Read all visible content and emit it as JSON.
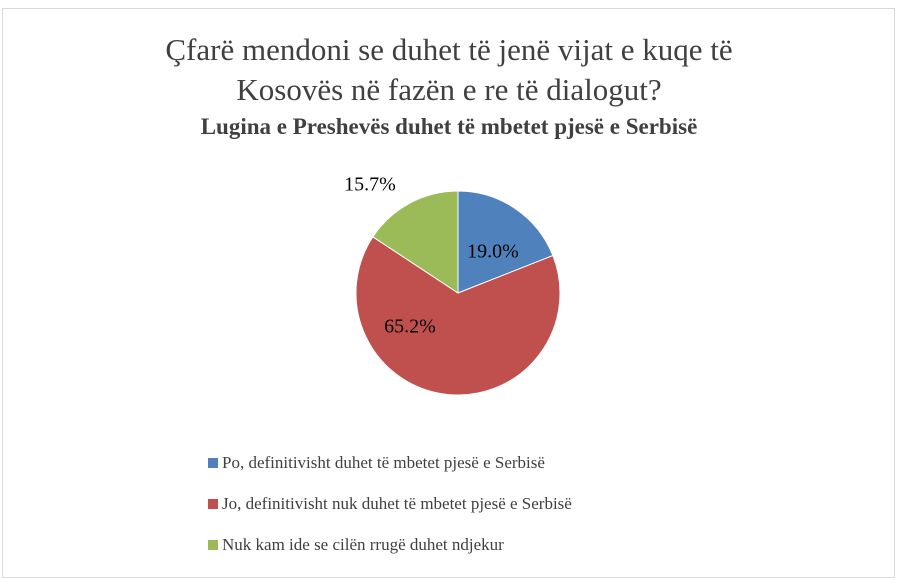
{
  "chart_data": {
    "type": "pie",
    "title": "Çfarë mendoni se duhet të jenë vijat e kuqe të Kosovës në fazën e re të dialogut?",
    "subtitle": "Lugina e Preshevës duhet të mbetet pjesë e Serbisë",
    "categories": [
      "Po, definitivisht duhet të mbetet pjesë e Serbisë",
      "Jo, definitivisht nuk duhet të mbetet pjesë e Serbisë",
      "Nuk kam ide se cilën rrugë duhet ndjekur"
    ],
    "values": [
      19.0,
      65.2,
      15.7
    ],
    "value_labels": [
      "19.0%",
      "65.2%",
      "15.7%"
    ],
    "colors": [
      "#4f81bd",
      "#c0504d",
      "#9bbb59"
    ],
    "legend": "bottom"
  }
}
